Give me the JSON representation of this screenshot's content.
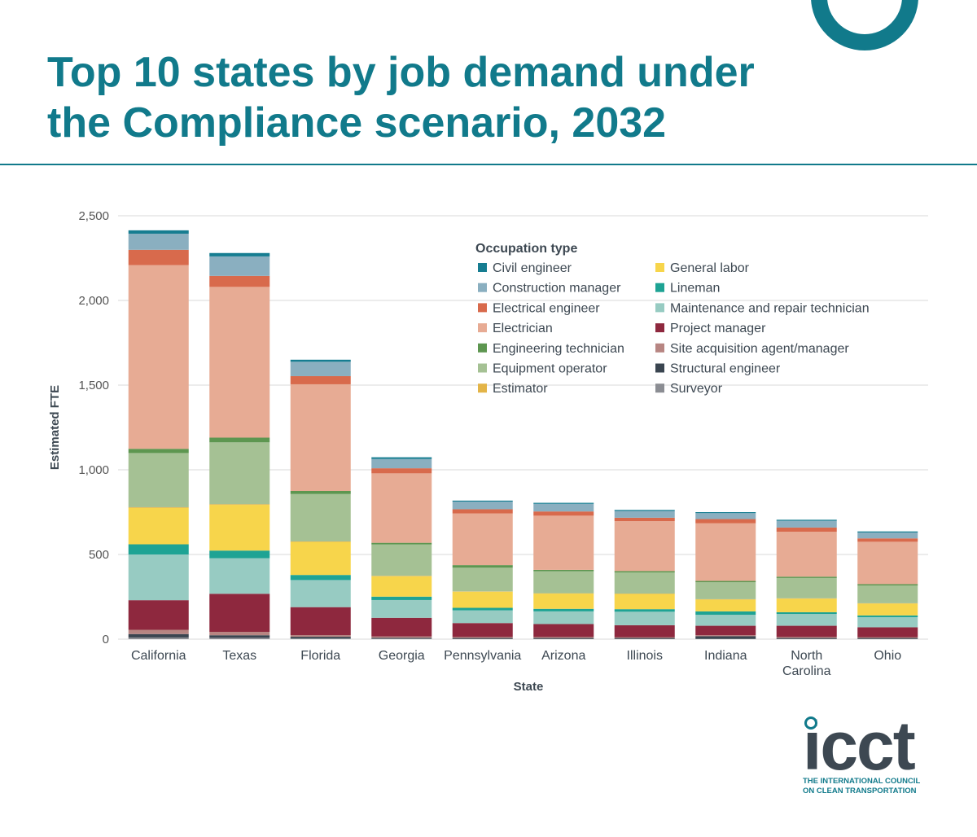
{
  "page": {
    "title": "Top 10 states by job demand under the Compliance scenario, 2032"
  },
  "logo": {
    "wordmark": "icct",
    "tagline_line1": "THE INTERNATIONAL COUNCIL",
    "tagline_line2": "ON CLEAN TRANSPORTATION"
  },
  "colors": {
    "accent": "#117a8b",
    "grid": "#d9d9d9",
    "text": "#3d4852"
  },
  "chart_data": {
    "type": "bar",
    "stacked": true,
    "title": "Top 10 states by job demand under the Compliance scenario, 2032",
    "xlabel": "State",
    "ylabel": "Estimated FTE",
    "ylim": [
      0,
      2500
    ],
    "yticks": [
      0,
      500,
      1000,
      1500,
      2000,
      2500
    ],
    "ytick_labels": [
      "0",
      "500",
      "1,000",
      "1,500",
      "2,000",
      "2,500"
    ],
    "grid": true,
    "legend_title": "Occupation type",
    "legend_position": "top-right",
    "categories": [
      "California",
      "Texas",
      "Florida",
      "Georgia",
      "Pennsylvania",
      "Arizona",
      "Illinois",
      "Indiana",
      "North Carolina",
      "Ohio"
    ],
    "category_label_lines": [
      [
        "California"
      ],
      [
        "Texas"
      ],
      [
        "Florida"
      ],
      [
        "Georgia"
      ],
      [
        "Pennsylvania"
      ],
      [
        "Arizona"
      ],
      [
        "Illinois"
      ],
      [
        "Indiana"
      ],
      [
        "North",
        "Carolina"
      ],
      [
        "Ohio"
      ]
    ],
    "stack_order": [
      "Surveyor",
      "Structural engineer",
      "Site acquisition agent/manager",
      "Project manager",
      "Maintenance and repair technician",
      "Lineman",
      "General labor",
      "Estimator",
      "Equipment operator",
      "Engineering technician",
      "Electrician",
      "Electrical engineer",
      "Construction manager",
      "Civil engineer"
    ],
    "legend_columns": [
      [
        "Civil engineer",
        "Construction manager",
        "Electrical engineer",
        "Electrician",
        "Engineering technician",
        "Equipment operator",
        "Estimator"
      ],
      [
        "General labor",
        "Lineman",
        "Maintenance and repair technician",
        "Project manager",
        "Site acquisition agent/manager",
        "Structural engineer",
        "Surveyor"
      ]
    ],
    "series": [
      {
        "name": "Civil engineer",
        "color": "#167d91",
        "values": [
          20,
          20,
          12,
          10,
          6,
          6,
          6,
          6,
          6,
          6
        ]
      },
      {
        "name": "Construction manager",
        "color": "#8aafc0",
        "values": [
          95,
          115,
          85,
          55,
          45,
          45,
          40,
          35,
          40,
          35
        ]
      },
      {
        "name": "Electrical engineer",
        "color": "#d86a4c",
        "values": [
          90,
          65,
          48,
          30,
          25,
          25,
          20,
          25,
          25,
          20
        ]
      },
      {
        "name": "Electrician",
        "color": "#e7ab94",
        "values": [
          1085,
          890,
          630,
          410,
          305,
          320,
          295,
          340,
          265,
          250
        ]
      },
      {
        "name": "Engineering technician",
        "color": "#5d9650",
        "values": [
          25,
          28,
          18,
          10,
          15,
          8,
          8,
          8,
          8,
          8
        ]
      },
      {
        "name": "Equipment operator",
        "color": "#a5c194",
        "values": [
          320,
          365,
          280,
          185,
          140,
          130,
          125,
          100,
          120,
          105
        ]
      },
      {
        "name": "Estimator",
        "color": "#e3b447",
        "values": [
          4,
          4,
          3,
          3,
          2,
          2,
          2,
          2,
          2,
          2
        ]
      },
      {
        "name": "General labor",
        "color": "#f7d54b",
        "values": [
          215,
          270,
          195,
          120,
          95,
          90,
          90,
          70,
          80,
          70
        ]
      },
      {
        "name": "Lineman",
        "color": "#1ea394",
        "values": [
          60,
          45,
          30,
          20,
          15,
          15,
          15,
          20,
          10,
          10
        ]
      },
      {
        "name": "Maintenance and repair technician",
        "color": "#97cbc2",
        "values": [
          270,
          210,
          160,
          105,
          75,
          75,
          80,
          65,
          70,
          60
        ]
      },
      {
        "name": "Project manager",
        "color": "#8e283e",
        "values": [
          175,
          225,
          165,
          110,
          82,
          76,
          70,
          56,
          66,
          58
        ]
      },
      {
        "name": "Site acquisition agent/manager",
        "color": "#b78582",
        "values": [
          25,
          20,
          10,
          8,
          6,
          6,
          5,
          6,
          6,
          5
        ]
      },
      {
        "name": "Structural engineer",
        "color": "#3a4550",
        "values": [
          20,
          15,
          10,
          5,
          5,
          5,
          5,
          15,
          5,
          5
        ]
      },
      {
        "name": "Surveyor",
        "color": "#8b8d93",
        "values": [
          10,
          8,
          4,
          3,
          2,
          2,
          2,
          2,
          2,
          2
        ]
      }
    ]
  }
}
